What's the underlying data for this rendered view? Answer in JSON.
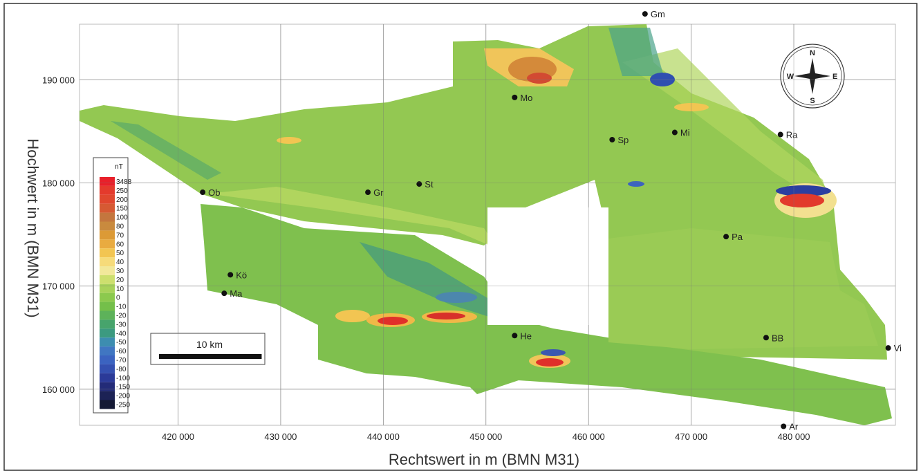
{
  "map": {
    "axes": {
      "x_label": "Rechtswert in m (BMN M31)",
      "y_label": "Hochwert in m (BMN M31)",
      "xlim": [
        410400,
        489900
      ],
      "ylim": [
        156500,
        195400
      ],
      "xticks": [
        {
          "value": 420000,
          "label": "420 000"
        },
        {
          "value": 430000,
          "label": "430 000"
        },
        {
          "value": 440000,
          "label": "440 000"
        },
        {
          "value": 450000,
          "label": "450 000"
        },
        {
          "value": 460000,
          "label": "460 000"
        },
        {
          "value": 470000,
          "label": "470 000"
        },
        {
          "value": 480000,
          "label": "480 000"
        }
      ],
      "yticks": [
        {
          "value": 160000,
          "label": "160 000"
        },
        {
          "value": 170000,
          "label": "170 000"
        },
        {
          "value": 180000,
          "label": "180 000"
        },
        {
          "value": 190000,
          "label": "190 000"
        }
      ]
    },
    "places": [
      {
        "label": "Gm",
        "x": 465500,
        "y": 196400
      },
      {
        "label": "Mo",
        "x": 452800,
        "y": 188300
      },
      {
        "label": "Sp",
        "x": 462300,
        "y": 184200
      },
      {
        "label": "Mi",
        "x": 468400,
        "y": 184900
      },
      {
        "label": "Ra",
        "x": 478700,
        "y": 184700
      },
      {
        "label": "Ob",
        "x": 422400,
        "y": 179100
      },
      {
        "label": "Gr",
        "x": 438500,
        "y": 179100
      },
      {
        "label": "St",
        "x": 443500,
        "y": 179900
      },
      {
        "label": "Pa",
        "x": 473400,
        "y": 174800
      },
      {
        "label": "Kö",
        "x": 425100,
        "y": 171100
      },
      {
        "label": "Ma",
        "x": 424500,
        "y": 169300
      },
      {
        "label": "He",
        "x": 452800,
        "y": 165200
      },
      {
        "label": "BB",
        "x": 477300,
        "y": 165000
      },
      {
        "label": "Vi",
        "x": 489200,
        "y": 164000
      },
      {
        "label": "Ar",
        "x": 479000,
        "y": 156400
      }
    ],
    "legend": {
      "unit": "nT",
      "levels": [
        3488,
        250,
        200,
        150,
        100,
        80,
        70,
        60,
        50,
        40,
        30,
        20,
        10,
        0,
        -10,
        -20,
        -30,
        -40,
        -50,
        -60,
        -70,
        -80,
        -100,
        -150,
        -200,
        -250
      ],
      "colors": [
        "#e8202a",
        "#e43a2c",
        "#e0472e",
        "#d65a33",
        "#c4763e",
        "#c98a3e",
        "#dc9a36",
        "#e9ab40",
        "#f2c552",
        "#f6db7a",
        "#f2e89a",
        "#cddf6e",
        "#a8d25a",
        "#8cc94e",
        "#74bf4a",
        "#5db25a",
        "#47a46c",
        "#3c9a80",
        "#3d8db0",
        "#4076c2",
        "#3b63c0",
        "#3450b0",
        "#2b3a98",
        "#232b78",
        "#1c2255",
        "#151a35"
      ]
    },
    "scale_bar": {
      "label": "10 km",
      "length": 10000
    },
    "compass": {
      "n": "N",
      "e": "E",
      "s": "S",
      "w": "W"
    }
  }
}
